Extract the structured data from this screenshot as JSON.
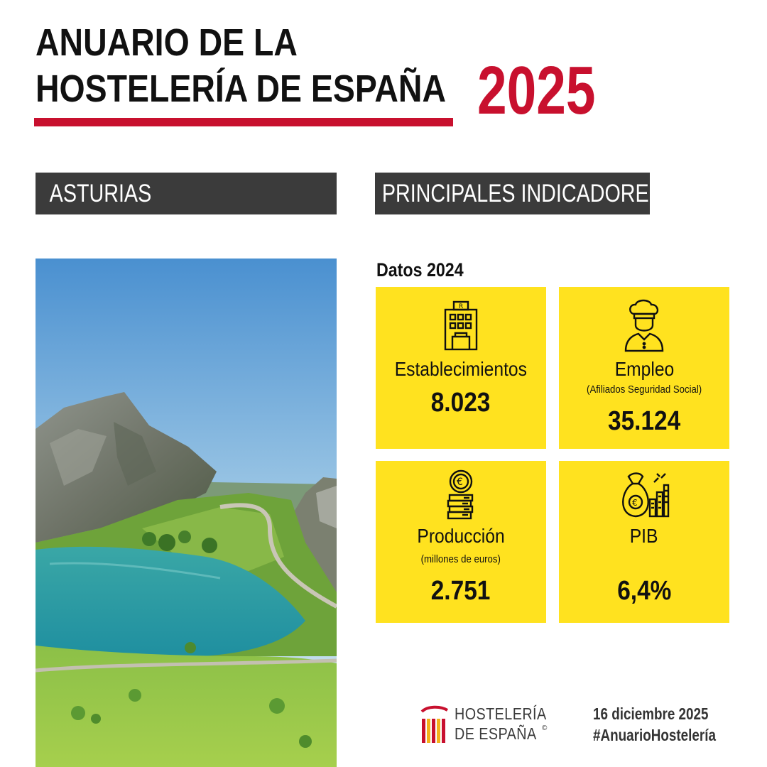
{
  "header": {
    "title_line1": "ANUARIO DE LA",
    "title_line2": "HOSTELERÍA DE ESPAÑA",
    "year": "2025",
    "accent_color": "#c8102e"
  },
  "sections": {
    "region": "ASTURIAS",
    "indicators": "PRINCIPALES INDICADORES"
  },
  "data_year_label": "Datos 2024",
  "cards": [
    {
      "icon": "hotel-building-icon",
      "label": "Establecimientos",
      "sub": "",
      "value": "8.023"
    },
    {
      "icon": "chef-icon",
      "label": "Empleo",
      "sub": "(Afiliados Seguridad Social)",
      "value": "35.124"
    },
    {
      "icon": "euro-coins-icon",
      "label": "Producción",
      "sub": "(millones de euros)",
      "value": "2.751"
    },
    {
      "icon": "money-bag-chart-icon",
      "label": "PIB",
      "sub": "",
      "value": "6,4%"
    }
  ],
  "card_color": "#ffe21f",
  "logo": {
    "line1": "HOSTELERÍA",
    "line2": "DE ESPAÑA",
    "registered": "©"
  },
  "footer": {
    "date": "16 diciembre 2025",
    "hashtag": "#AnuarioHostelería"
  }
}
